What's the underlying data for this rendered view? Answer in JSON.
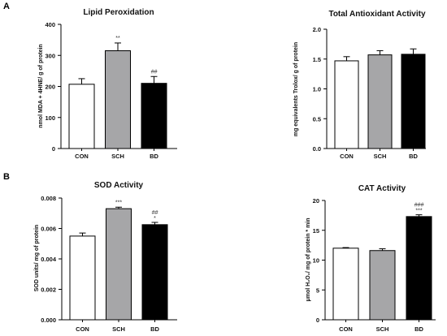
{
  "panel_labels": [
    "A",
    "B"
  ],
  "chart_data": [
    {
      "type": "bar",
      "title": "Lipid Peroxidation",
      "ylabel": "nmol MDA + 4HNE/ g of protein",
      "categories": [
        "CON",
        "SCH",
        "BD"
      ],
      "values": [
        207,
        315,
        210
      ],
      "errors": [
        18,
        25,
        22
      ],
      "colors": [
        "#ffffff",
        "#a6a6a8",
        "#000000"
      ],
      "sig_top": [
        "",
        "**",
        "##"
      ],
      "sig_bottom": [
        "",
        "",
        ""
      ],
      "ylim": [
        0,
        400
      ],
      "yticks": [
        "0",
        "100",
        "200",
        "300",
        "400"
      ],
      "grid": false
    },
    {
      "type": "bar",
      "title": "Total Antioxidant Activity",
      "ylabel": "mg equivalents Trolox/ g of protein",
      "categories": [
        "CON",
        "SCH",
        "BD"
      ],
      "values": [
        1.47,
        1.57,
        1.58
      ],
      "errors": [
        0.07,
        0.07,
        0.09
      ],
      "colors": [
        "#ffffff",
        "#a6a6a8",
        "#000000"
      ],
      "sig_top": [
        "",
        "",
        ""
      ],
      "sig_bottom": [
        "",
        "",
        ""
      ],
      "ylim": [
        0,
        2.0
      ],
      "yticks": [
        "0.0",
        "0.5",
        "1.0",
        "1.5",
        "2.0"
      ],
      "grid": false
    },
    {
      "type": "bar",
      "title": "SOD Activity",
      "ylabel": "SOD units/ mg of protein",
      "categories": [
        "CON",
        "SCH",
        "BD"
      ],
      "values": [
        0.0055,
        0.0073,
        0.00625
      ],
      "errors": [
        0.0002,
        0.0001,
        0.00015
      ],
      "colors": [
        "#ffffff",
        "#a6a6a8",
        "#000000"
      ],
      "sig_top": [
        "",
        "***",
        "##"
      ],
      "sig_bottom": [
        "",
        "",
        "*"
      ],
      "ylim": [
        0,
        0.008
      ],
      "yticks": [
        "0.000",
        "0.002",
        "0.004",
        "0.006",
        "0.008"
      ],
      "grid": false
    },
    {
      "type": "bar",
      "title": "CAT Activity",
      "ylabel": "μmol H₂O₂/ mg of protein * min",
      "categories": [
        "CON",
        "SCH",
        "BD"
      ],
      "values": [
        12.0,
        11.6,
        17.3
      ],
      "errors": [
        0.1,
        0.3,
        0.3
      ],
      "colors": [
        "#ffffff",
        "#a6a6a8",
        "#000000"
      ],
      "sig_top": [
        "",
        "",
        "###"
      ],
      "sig_bottom": [
        "",
        "",
        "***"
      ],
      "ylim": [
        0,
        20
      ],
      "yticks": [
        "0",
        "5",
        "10",
        "15",
        "20"
      ],
      "grid": false
    }
  ]
}
